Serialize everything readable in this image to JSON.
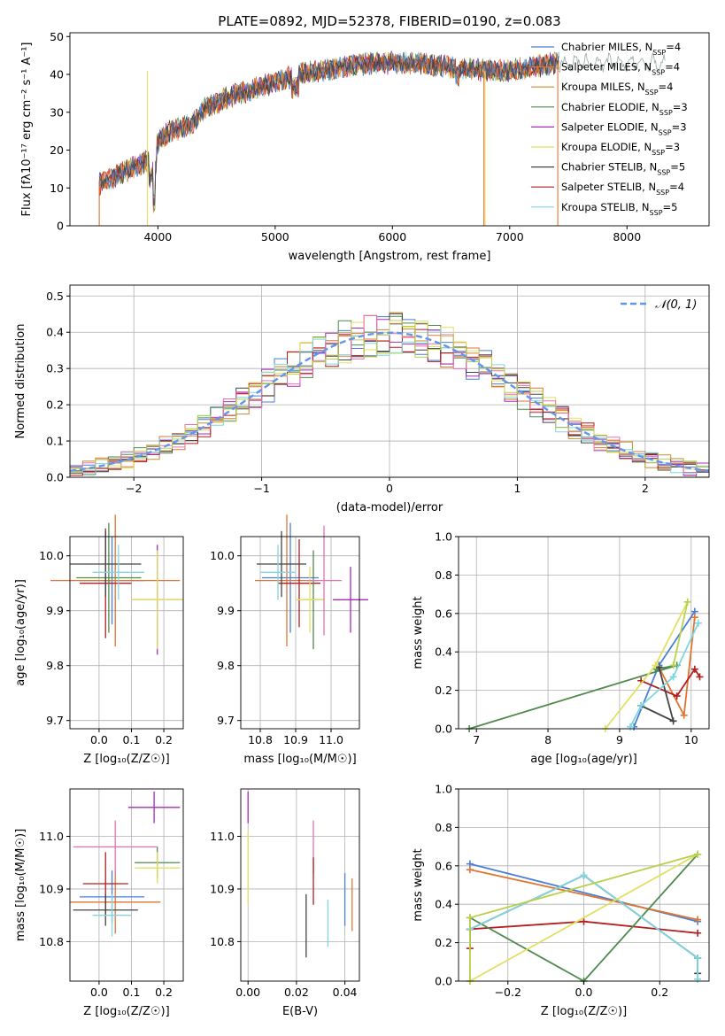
{
  "figure": {
    "title": "PLATE=0892, MJD=52378, FIBERID=0190, z=0.083"
  },
  "colors": {
    "Chabrier MILES": "#4a7fd6",
    "Salpeter MILES": "#e07532",
    "Kroupa MILES": "#c98a2c",
    "Chabrier ELODIE": "#4f8a4f",
    "Salpeter ELODIE": "#a52bb5",
    "Kroupa ELODIE": "#e2e060",
    "Chabrier STELIB": "#444444",
    "Salpeter STELIB": "#b31e1e",
    "Kroupa STELIB": "#7fd6e0",
    "pink": "#e870b0",
    "lime": "#b8d04a"
  },
  "chart_data": [
    {
      "id": "spectrum",
      "type": "line",
      "title": "PLATE=0892, MJD=52378, FIBERID=0190, z=0.083",
      "xlabel": "wavelength [Angstrom, rest frame]",
      "ylabel": "Flux [fλ10⁻¹⁷ erg cm⁻² s⁻¹ A⁻¹]",
      "xlim": [
        3250,
        8700
      ],
      "ylim": [
        0,
        51
      ],
      "xticks": [
        4000,
        5000,
        6000,
        7000,
        8000
      ],
      "yticks": [
        0,
        10,
        20,
        30,
        40,
        50
      ],
      "grid": false,
      "legend_position": "top-right",
      "legend": [
        {
          "text": "Chabrier MILES, N",
          "sub": "SSP",
          "tail": "=4",
          "color": "#4a7fd6"
        },
        {
          "text": "Salpeter MILES, N",
          "sub": "SSP",
          "tail": "=4",
          "color": "#e07532"
        },
        {
          "text": "Kroupa MILES, N",
          "sub": "SSP",
          "tail": "=4",
          "color": "#c98a2c"
        },
        {
          "text": "Chabrier ELODIE, N",
          "sub": "SSP",
          "tail": "=3",
          "color": "#4f8a4f"
        },
        {
          "text": "Salpeter ELODIE, N",
          "sub": "SSP",
          "tail": "=3",
          "color": "#a52bb5"
        },
        {
          "text": "Kroupa ELODIE, N",
          "sub": "SSP",
          "tail": "=3",
          "color": "#e2e060"
        },
        {
          "text": "Chabrier STELIB, N",
          "sub": "SSP",
          "tail": "=5",
          "color": "#444444"
        },
        {
          "text": "Salpeter STELIB, N",
          "sub": "SSP",
          "tail": "=4",
          "color": "#b31e1e"
        },
        {
          "text": "Kroupa STELIB, N",
          "sub": "SSP",
          "tail": "=5",
          "color": "#7fd6e0"
        }
      ],
      "continuum_x": [
        3500,
        3700,
        3900,
        4000,
        4100,
        4300,
        4400,
        4600,
        4800,
        5000,
        5200,
        5400,
        5600,
        5800,
        6000,
        6200,
        6500,
        6800,
        7000,
        7200,
        7400
      ],
      "continuum_y": [
        11,
        14,
        17,
        22,
        25,
        27,
        31,
        34,
        36,
        38,
        40,
        41,
        42,
        43,
        43,
        43,
        42,
        41,
        41,
        42,
        43
      ],
      "dropouts": [
        {
          "x": 6780,
          "color": "#e07532"
        },
        {
          "x": 6790,
          "color": "#e2e060"
        },
        {
          "x": 7410,
          "color": "#e07532"
        },
        {
          "x": 3910,
          "color": "#e2e060"
        }
      ]
    },
    {
      "id": "residuals",
      "type": "histogram",
      "xlabel": "(data-model)/error",
      "ylabel": "Normed distribution",
      "xlim": [
        -2.5,
        2.5
      ],
      "ylim": [
        0,
        0.53
      ],
      "xticks": [
        -2,
        -1,
        0,
        1,
        2
      ],
      "yticks": [
        0.0,
        0.1,
        0.2,
        0.3,
        0.4,
        0.5
      ],
      "grid": true,
      "legend_position": "top-right",
      "legend": [
        {
          "text": "𝒩(0, 1)",
          "color": "#6495ED",
          "style": "dashed"
        }
      ],
      "bin_width": 0.1
    },
    {
      "id": "age_vs_Z",
      "type": "errorbar",
      "xlabel": "Z [log₁₀(Z/Z☉)]",
      "ylabel": "age  [log₁₀(age/yr)]",
      "xlim": [
        -0.09,
        0.26
      ],
      "ylim": [
        9.685,
        10.035
      ],
      "xticks": [
        0.0,
        0.1,
        0.2
      ],
      "yticks": [
        9.7,
        9.8,
        9.9,
        10.0
      ],
      "grid": true,
      "points": [
        {
          "x": 0.04,
          "xerr": 0.1,
          "y": 9.955,
          "yerr": 0.08,
          "color": "#4a7fd6"
        },
        {
          "x": 0.05,
          "xerr": 0.2,
          "y": 9.955,
          "yerr": 0.12,
          "color": "#e07532"
        },
        {
          "x": 0.02,
          "xerr": 0.08,
          "y": 9.95,
          "yerr": 0.1,
          "color": "#b31e1e"
        },
        {
          "x": 0.03,
          "xerr": 0.1,
          "y": 9.96,
          "yerr": 0.1,
          "color": "#4f8a4f"
        },
        {
          "x": 0.02,
          "xerr": 0.11,
          "y": 9.985,
          "yerr": 0.06,
          "color": "#444444"
        },
        {
          "x": 0.06,
          "xerr": 0.08,
          "y": 9.97,
          "yerr": 0.05,
          "color": "#7fd6e0"
        },
        {
          "x": 0.18,
          "xerr": 0.08,
          "y": 9.92,
          "yerr": 0.1,
          "color": "#a52bb5"
        },
        {
          "x": 0.18,
          "xerr": 0.08,
          "y": 9.92,
          "yerr": 0.09,
          "color": "#e2e060"
        }
      ]
    },
    {
      "id": "age_vs_mass",
      "type": "errorbar",
      "xlabel": "mass [log₁₀(M/M☉)]",
      "ylabel": "",
      "xlim": [
        10.745,
        11.08
      ],
      "ylim": [
        9.685,
        10.035
      ],
      "xticks": [
        10.8,
        10.9,
        11.0
      ],
      "xtick_labels": [
        "10.8",
        "10.9",
        "11.0"
      ],
      "yticks": [
        9.7,
        9.8,
        9.9,
        10.0
      ],
      "grid": true,
      "points": [
        {
          "x": 10.885,
          "xerr": 0.08,
          "y": 9.96,
          "yerr": 0.1,
          "color": "#4a7fd6"
        },
        {
          "x": 10.875,
          "xerr": 0.09,
          "y": 9.955,
          "yerr": 0.12,
          "color": "#e07532"
        },
        {
          "x": 10.91,
          "xerr": 0.06,
          "y": 9.95,
          "yerr": 0.08,
          "color": "#b31e1e"
        },
        {
          "x": 10.95,
          "xerr": 0.03,
          "y": 9.92,
          "yerr": 0.09,
          "color": "#4f8a4f"
        },
        {
          "x": 10.86,
          "xerr": 0.07,
          "y": 9.985,
          "yerr": 0.06,
          "color": "#444444"
        },
        {
          "x": 10.85,
          "xerr": 0.05,
          "y": 9.97,
          "yerr": 0.05,
          "color": "#7fd6e0"
        },
        {
          "x": 11.055,
          "xerr": 0.05,
          "y": 9.92,
          "yerr": 0.06,
          "color": "#a52bb5"
        },
        {
          "x": 10.94,
          "xerr": 0.04,
          "y": 9.92,
          "yerr": 0.06,
          "color": "#e2e060"
        },
        {
          "x": 10.98,
          "xerr": 0.05,
          "y": 9.955,
          "yerr": 0.1,
          "color": "#e870b0"
        }
      ]
    },
    {
      "id": "weight_vs_age",
      "type": "line",
      "xlabel": "age  [log₁₀(age/yr)]",
      "ylabel": "mass weight",
      "xlim": [
        6.75,
        10.25
      ],
      "ylim": [
        0.0,
        1.0
      ],
      "xticks": [
        7,
        8,
        9,
        10
      ],
      "yticks": [
        0.0,
        0.2,
        0.4,
        0.6,
        0.8,
        1.0
      ],
      "grid": true,
      "series": [
        {
          "color": "#4a7fd6",
          "x": [
            9.2,
            9.55,
            10.05
          ],
          "y": [
            0.01,
            0.33,
            0.61
          ]
        },
        {
          "color": "#e07532",
          "x": [
            9.55,
            9.9,
            10.05
          ],
          "y": [
            0.32,
            0.07,
            0.58
          ]
        },
        {
          "color": "#b31e1e",
          "x": [
            9.3,
            9.8,
            10.05,
            10.12
          ],
          "y": [
            0.25,
            0.17,
            0.31,
            0.27
          ]
        },
        {
          "color": "#4f8a4f",
          "x": [
            6.9,
            9.8,
            9.5
          ],
          "y": [
            0.0,
            0.33,
            0.31
          ]
        },
        {
          "color": "#444444",
          "x": [
            9.3,
            9.75,
            9.55
          ],
          "y": [
            0.12,
            0.04,
            0.32
          ]
        },
        {
          "color": "#7fd6e0",
          "x": [
            9.15,
            9.3,
            9.75,
            10.1
          ],
          "y": [
            0.01,
            0.12,
            0.27,
            0.55
          ]
        },
        {
          "color": "#e2e060",
          "x": [
            8.8,
            9.5,
            9.95
          ],
          "y": [
            0.0,
            0.33,
            0.66
          ]
        },
        {
          "color": "#b8d04a",
          "x": [
            9.75,
            9.95
          ],
          "y": [
            0.33,
            0.66
          ]
        }
      ]
    },
    {
      "id": "mass_vs_Z",
      "type": "errorbar",
      "xlabel": "Z [log₁₀(Z/Z☉)]",
      "ylabel": "mass [log₁₀(M/M☉)]",
      "xlim": [
        -0.09,
        0.26
      ],
      "ylim": [
        10.725,
        11.09
      ],
      "xticks": [
        0.0,
        0.1,
        0.2
      ],
      "yticks": [
        10.8,
        10.9,
        11.0
      ],
      "grid": true,
      "points": [
        {
          "x": 0.04,
          "xerr": 0.1,
          "y": 10.885,
          "yerr": 0.05,
          "color": "#4a7fd6"
        },
        {
          "x": 0.05,
          "xerr": 0.14,
          "y": 10.875,
          "yerr": 0.06,
          "color": "#e07532"
        },
        {
          "x": 0.02,
          "xerr": 0.07,
          "y": 10.91,
          "yerr": 0.06,
          "color": "#b31e1e"
        },
        {
          "x": 0.18,
          "xerr": 0.07,
          "y": 10.95,
          "yerr": 0.03,
          "color": "#4f8a4f"
        },
        {
          "x": 0.02,
          "xerr": 0.1,
          "y": 10.86,
          "yerr": 0.03,
          "color": "#444444"
        },
        {
          "x": 0.04,
          "xerr": 0.06,
          "y": 10.85,
          "yerr": 0.04,
          "color": "#7fd6e0"
        },
        {
          "x": 0.17,
          "xerr": 0.08,
          "y": 11.055,
          "yerr": 0.03,
          "color": "#a52bb5"
        },
        {
          "x": 0.18,
          "xerr": 0.07,
          "y": 10.94,
          "yerr": 0.03,
          "color": "#e2e060"
        },
        {
          "x": 0.05,
          "xerr": 0.13,
          "y": 10.98,
          "yerr": 0.05,
          "color": "#e870b0"
        }
      ]
    },
    {
      "id": "mass_vs_ebv",
      "type": "errorbar",
      "xlabel": "E(B-V)",
      "ylabel": "",
      "xlim": [
        -0.003,
        0.046
      ],
      "ylim": [
        10.725,
        11.09
      ],
      "xticks": [
        0.0,
        0.02,
        0.04
      ],
      "xtick_labels": [
        "0.00",
        "0.02",
        "0.04"
      ],
      "yticks": [
        10.8,
        10.9,
        11.0
      ],
      "grid": true,
      "points": [
        {
          "x": 0.0,
          "xerr": 0,
          "y": 11.055,
          "yerr": 0.03,
          "color": "#a52bb5"
        },
        {
          "x": 0.0,
          "xerr": 0,
          "y": 10.94,
          "yerr": 0.07,
          "color": "#e2e060"
        },
        {
          "x": 0.024,
          "xerr": 0,
          "y": 10.83,
          "yerr": 0.06,
          "color": "#444444"
        },
        {
          "x": 0.027,
          "xerr": 0,
          "y": 10.98,
          "yerr": 0.05,
          "color": "#e870b0"
        },
        {
          "x": 0.027,
          "xerr": 0,
          "y": 10.915,
          "yerr": 0.045,
          "color": "#b31e1e"
        },
        {
          "x": 0.033,
          "xerr": 0,
          "y": 10.835,
          "yerr": 0.045,
          "color": "#7fd6e0"
        },
        {
          "x": 0.04,
          "xerr": 0,
          "y": 10.88,
          "yerr": 0.05,
          "color": "#4a7fd6"
        },
        {
          "x": 0.043,
          "xerr": 0,
          "y": 10.87,
          "yerr": 0.05,
          "color": "#e07532"
        }
      ]
    },
    {
      "id": "weight_vs_Z",
      "type": "line",
      "xlabel": "Z [log₁₀(Z/Z☉)]",
      "ylabel": "mass weight",
      "xlim": [
        -0.33,
        0.33
      ],
      "ylim": [
        0.0,
        1.0
      ],
      "xticks": [
        -0.2,
        0.0,
        0.2
      ],
      "xtick_labels": [
        "−0.2",
        "0.0",
        "0.2"
      ],
      "yticks": [
        0.0,
        0.2,
        0.4,
        0.6,
        0.8,
        1.0
      ],
      "grid": true,
      "series": [
        {
          "color": "#4a7fd6",
          "x": [
            -0.3,
            0.3
          ],
          "y": [
            0.61,
            0.31
          ]
        },
        {
          "color": "#e07532",
          "x": [
            -0.3,
            0.3
          ],
          "y": [
            0.58,
            0.32
          ]
        },
        {
          "color": "#b31e1e",
          "x": [
            -0.3,
            -0.3,
            0.0,
            0.3
          ],
          "y": [
            0.17,
            0.27,
            0.31,
            0.25
          ]
        },
        {
          "color": "#4f8a4f",
          "x": [
            -0.3,
            0.0,
            0.3
          ],
          "y": [
            0.33,
            0.0,
            0.66
          ]
        },
        {
          "color": "#444444",
          "x": [
            -0.3,
            0.0,
            0.3,
            0.3
          ],
          "y": [
            0.27,
            0.55,
            0.12,
            0.04
          ]
        },
        {
          "color": "#7fd6e0",
          "x": [
            -0.3,
            0.0,
            0.3,
            0.3
          ],
          "y": [
            0.27,
            0.55,
            0.12,
            0.01
          ]
        },
        {
          "color": "#e2e060",
          "x": [
            -0.3,
            0.3
          ],
          "y": [
            0.0,
            0.66
          ]
        },
        {
          "color": "#b8d04a",
          "x": [
            -0.3,
            -0.3,
            0.3
          ],
          "y": [
            0.0,
            0.33,
            0.66
          ]
        }
      ]
    }
  ]
}
